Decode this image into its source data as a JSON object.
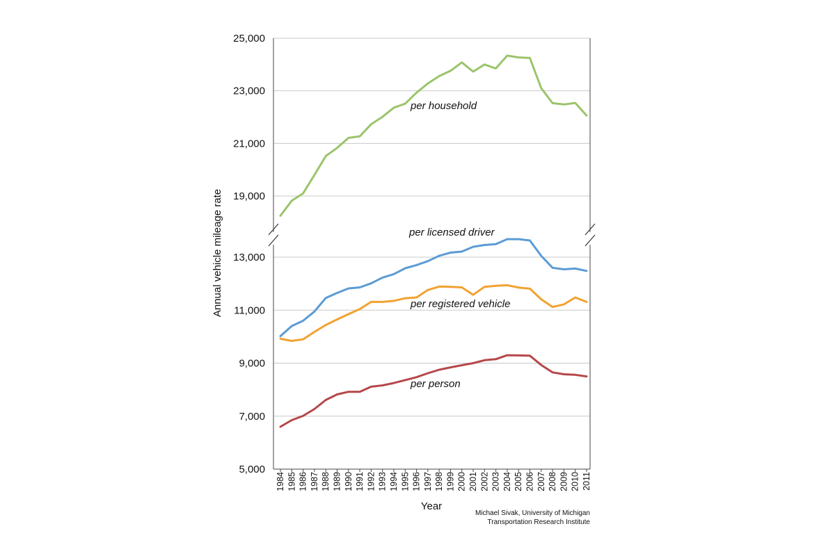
{
  "chart_data": {
    "type": "line",
    "title": "",
    "xlabel": "Year",
    "ylabel": "Annual vehicle mileage rate",
    "x": [
      "1984",
      "1985",
      "1986",
      "1987",
      "1988",
      "1989",
      "1990",
      "1991",
      "1992",
      "1993",
      "1994",
      "1995",
      "1996",
      "1997",
      "1998",
      "1999",
      "2000",
      "2001",
      "2002",
      "2003",
      "2004",
      "2005",
      "2006",
      "2007",
      "2008",
      "2009",
      "2010",
      "2011"
    ],
    "y_axis_break": true,
    "ylim_upper_panel": [
      18000,
      25000
    ],
    "ylim_lower_panel": [
      5000,
      13700
    ],
    "yticks": [
      {
        "value": 25000,
        "label": "25,000"
      },
      {
        "value": 23000,
        "label": "23,000"
      },
      {
        "value": 21000,
        "label": "21,000"
      },
      {
        "value": 19000,
        "label": "19,000"
      },
      {
        "value": 13000,
        "label": "13,000"
      },
      {
        "value": 11000,
        "label": "11,000"
      },
      {
        "value": 9000,
        "label": "9,000"
      },
      {
        "value": 7000,
        "label": "7,000"
      },
      {
        "value": 5000,
        "label": "5,000"
      }
    ],
    "grid": true,
    "series": [
      {
        "name": "per household",
        "color": "#9bc46b",
        "panel": "upper",
        "values": [
          18250,
          18820,
          19100,
          19800,
          20520,
          20830,
          21210,
          21270,
          21730,
          22010,
          22360,
          22510,
          22930,
          23280,
          23560,
          23760,
          24080,
          23730,
          24000,
          23850,
          24340,
          24270,
          24250,
          23100,
          22530,
          22480,
          22540,
          22060
        ]
      },
      {
        "name": "per licensed driver",
        "color": "#5b9bd5",
        "panel": "lower",
        "values": [
          10020,
          10400,
          10600,
          10950,
          11460,
          11650,
          11820,
          11860,
          12010,
          12230,
          12360,
          12580,
          12700,
          12850,
          13050,
          13170,
          13210,
          13390,
          13460,
          13490,
          13680,
          13680,
          13630,
          13050,
          12600,
          12540,
          12570,
          12480
        ]
      },
      {
        "name": "per registered vehicle",
        "color": "#f2a231",
        "panel": "lower",
        "values": [
          9920,
          9840,
          9900,
          10180,
          10440,
          10650,
          10850,
          11040,
          11310,
          11310,
          11350,
          11450,
          11480,
          11760,
          11890,
          11880,
          11860,
          11580,
          11880,
          11920,
          11940,
          11850,
          11810,
          11410,
          11120,
          11220,
          11480,
          11310
        ]
      },
      {
        "name": "per person",
        "color": "#b5474a",
        "panel": "lower",
        "values": [
          6600,
          6850,
          7010,
          7270,
          7610,
          7820,
          7920,
          7920,
          8110,
          8160,
          8250,
          8360,
          8470,
          8620,
          8750,
          8840,
          8920,
          9000,
          9110,
          9150,
          9300,
          9290,
          9280,
          8930,
          8650,
          8580,
          8560,
          8500
        ]
      }
    ],
    "annotations": [
      "Michael Sivak, University of Michigan",
      "Transportation Research Institute"
    ]
  }
}
